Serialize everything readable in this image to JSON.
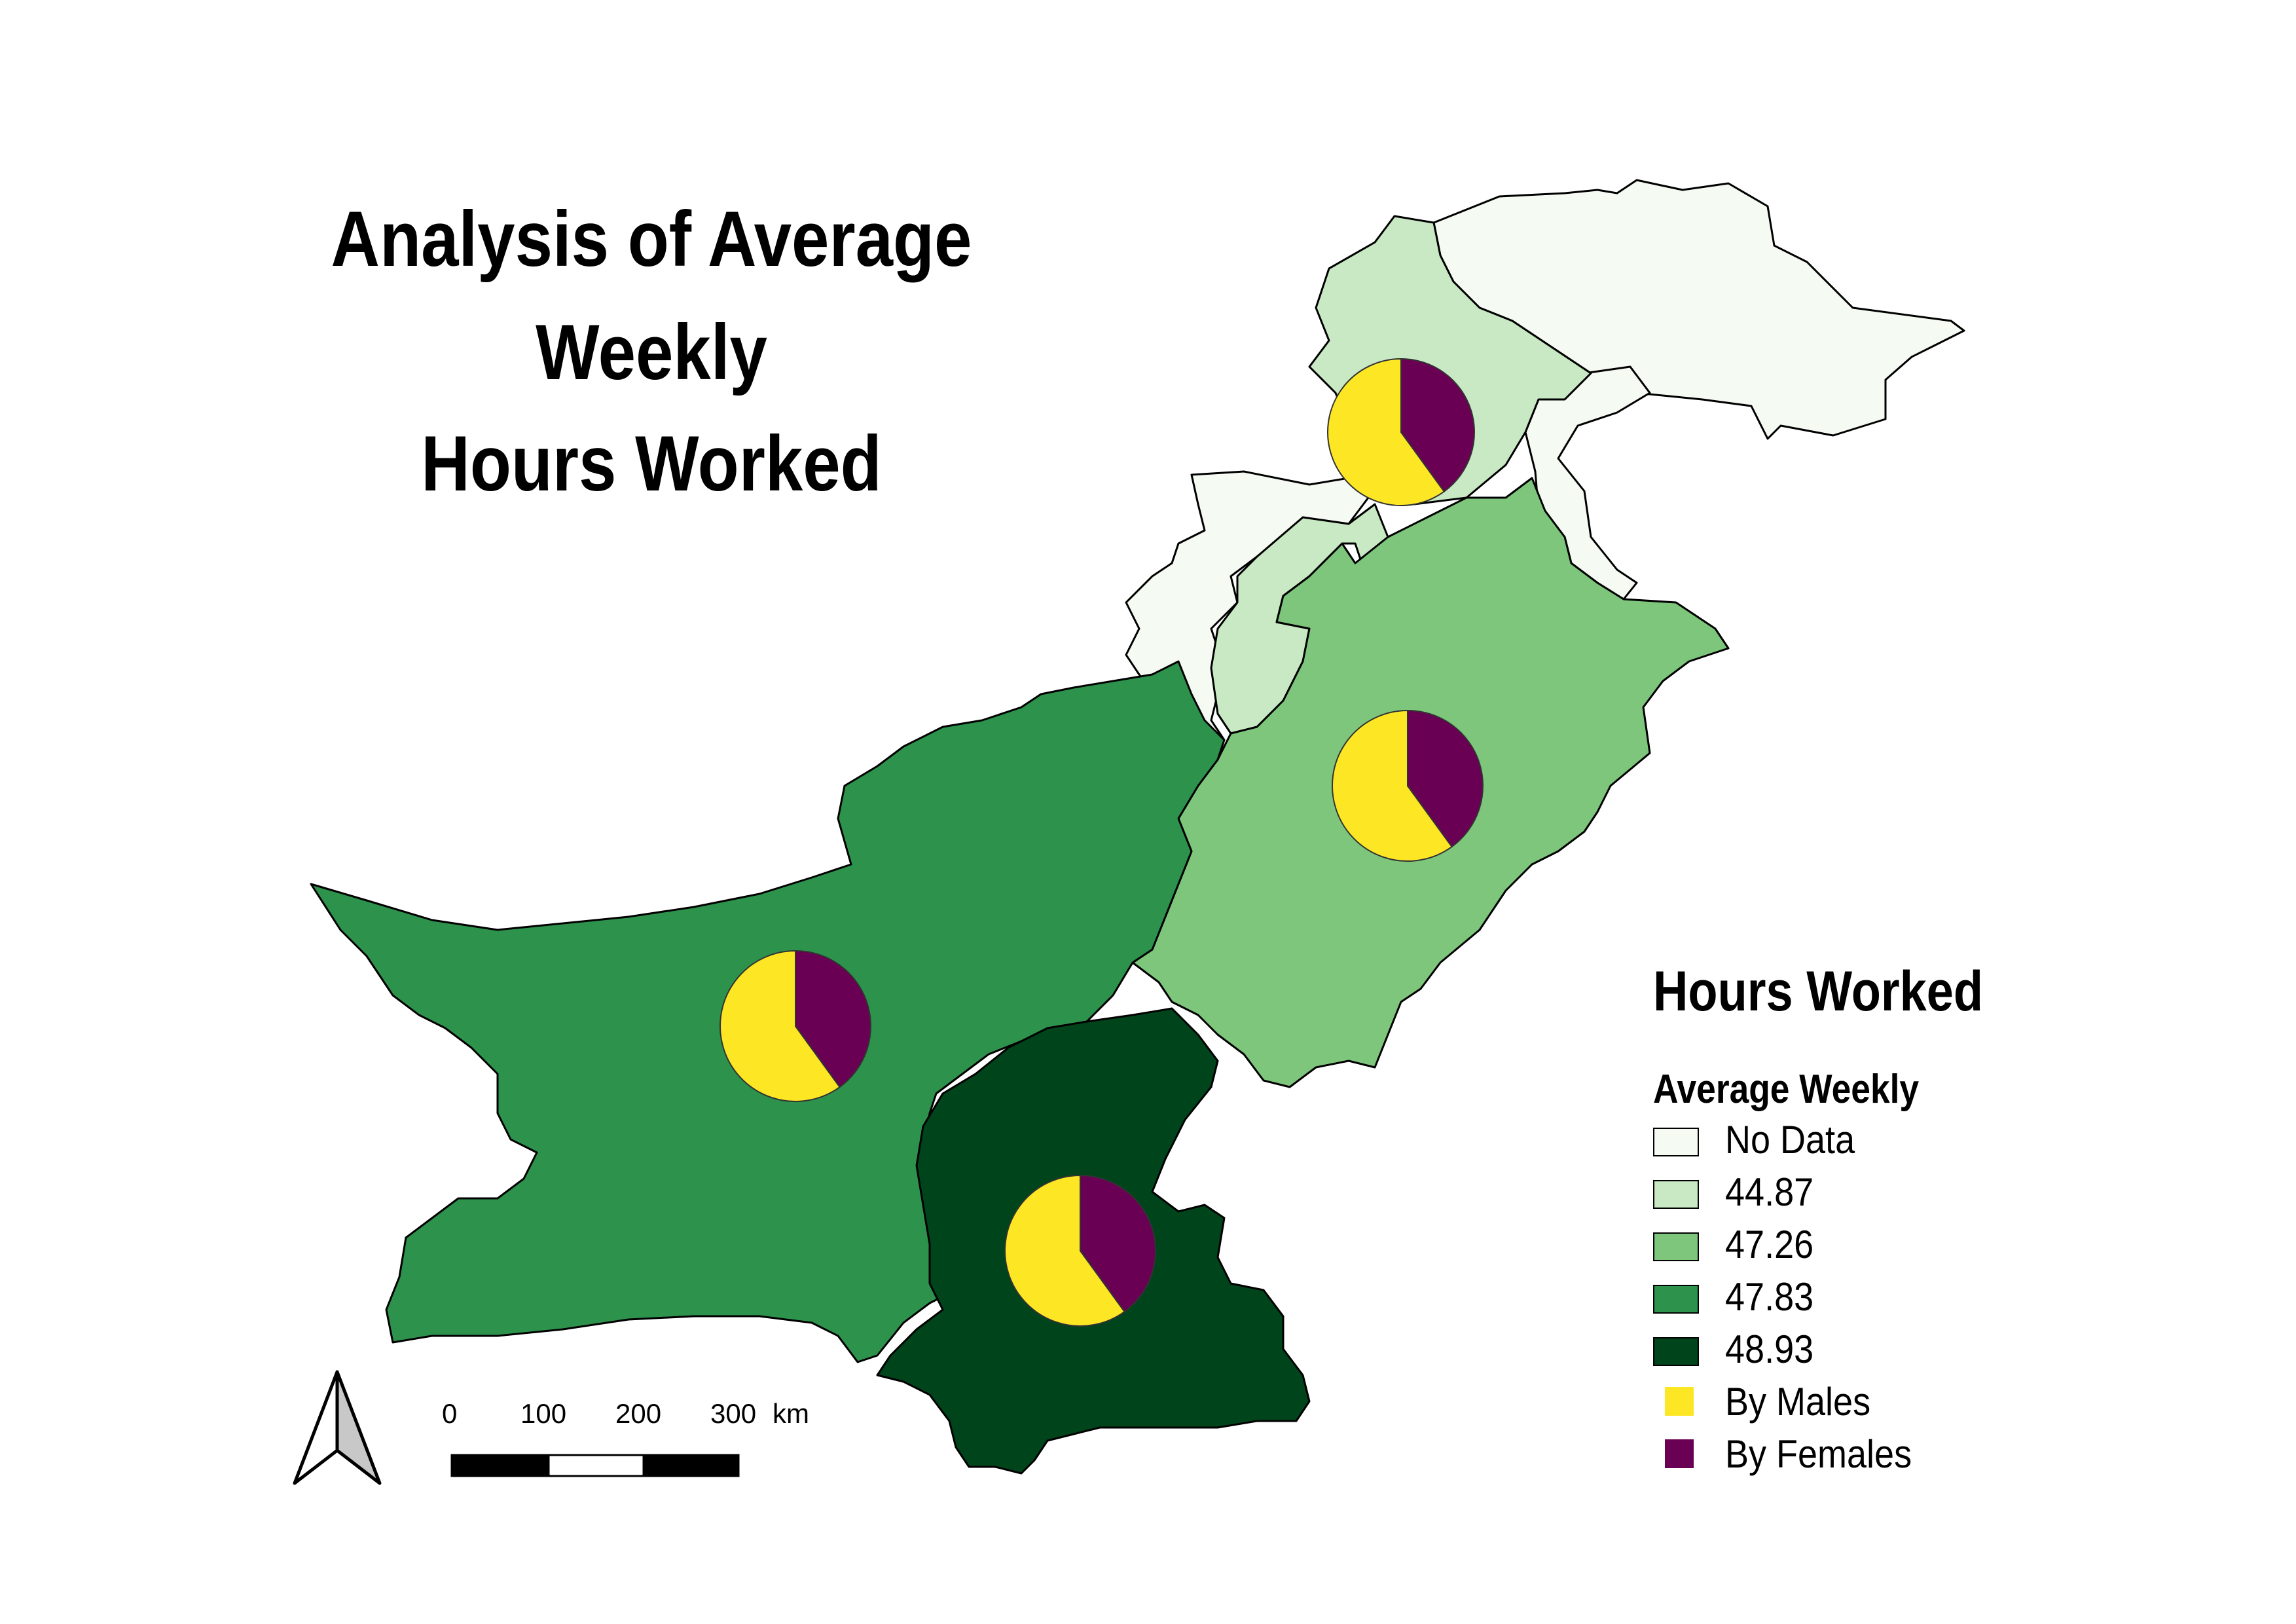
{
  "title": {
    "line1": "Analysis of Average",
    "line2": "Weekly",
    "line3": "Hours Worked"
  },
  "legend": {
    "title": "Hours Worked",
    "subtitle": "Average Weekly",
    "classes": [
      {
        "label": "No Data",
        "color": "#f5faf2"
      },
      {
        "label": "44.87",
        "color": "#c8e9c3"
      },
      {
        "label": "47.26",
        "color": "#7dc67c"
      },
      {
        "label": "47.83",
        "color": "#2d924c"
      },
      {
        "label": "48.93",
        "color": "#00441b"
      }
    ],
    "pie_series": [
      {
        "label": "By Males",
        "color": "#fde725"
      },
      {
        "label": "By Females",
        "color": "#6a0054"
      }
    ]
  },
  "scale_bar": {
    "ticks": [
      "0",
      "100",
      "200",
      "300"
    ],
    "unit": "km"
  },
  "north_arrow": {
    "icon": "north-arrow-icon"
  },
  "regions": [
    {
      "class": "No Data",
      "color": "#f5faf2"
    },
    {
      "class": "44.87",
      "color": "#c8e9c3"
    },
    {
      "class": "47.26",
      "color": "#7dc67c"
    },
    {
      "class": "47.83",
      "color": "#2d924c"
    },
    {
      "class": "48.93",
      "color": "#00441b"
    }
  ],
  "pie_charts": [
    {
      "region_class": "44.87",
      "males_share": 0.6,
      "females_share": 0.4
    },
    {
      "region_class": "47.26",
      "males_share": 0.6,
      "females_share": 0.4
    },
    {
      "region_class": "47.83",
      "males_share": 0.6,
      "females_share": 0.4
    },
    {
      "region_class": "48.93",
      "males_share": 0.6,
      "females_share": 0.4
    }
  ]
}
